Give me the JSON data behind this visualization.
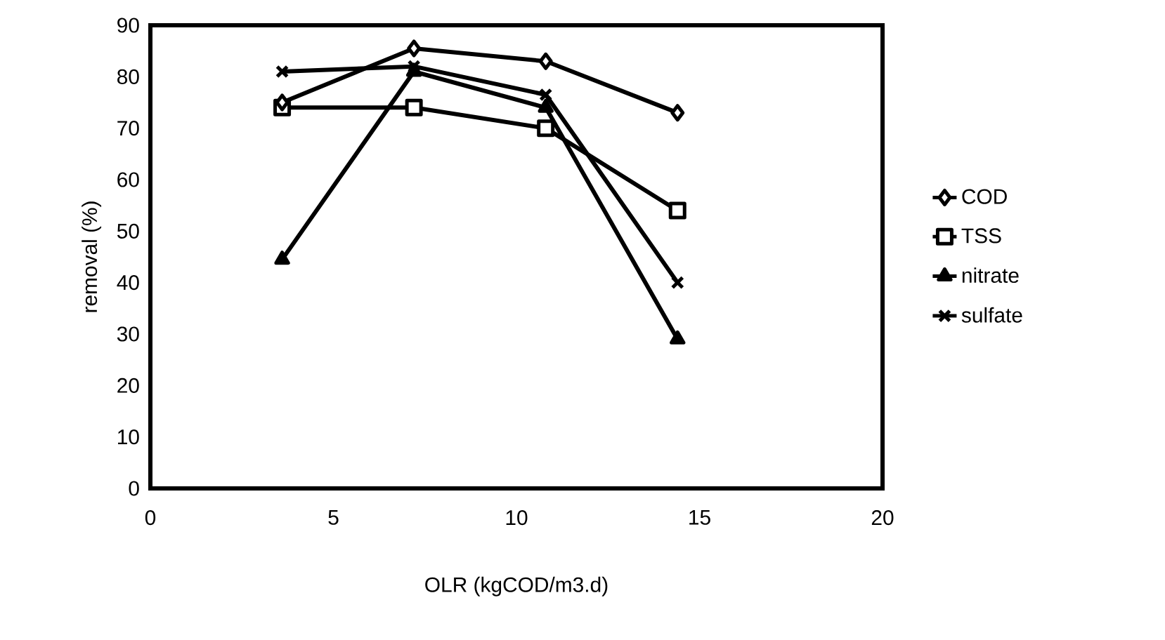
{
  "chart_data": {
    "type": "line",
    "xlabel": "OLR (kgCOD/m3.d)",
    "ylabel": "removal (%)",
    "x": [
      3.6,
      7.2,
      10.8,
      14.4
    ],
    "series": [
      {
        "name": "COD",
        "color": "#000000",
        "marker": "diamond",
        "values": [
          75,
          85.5,
          83,
          73
        ]
      },
      {
        "name": "TSS",
        "color": "#000000",
        "marker": "square",
        "values": [
          74,
          74,
          70,
          54
        ]
      },
      {
        "name": "nitrate",
        "color": "#000000",
        "marker": "triangle",
        "values": [
          44.5,
          81,
          74,
          29
        ]
      },
      {
        "name": "sulfate",
        "color": "#000000",
        "marker": "cross",
        "values": [
          81,
          82,
          76.5,
          40
        ]
      }
    ],
    "xlim": [
      0,
      20
    ],
    "xticks": [
      0,
      5,
      10,
      15,
      20
    ],
    "ylim": [
      0,
      90
    ],
    "yticks": [
      0,
      10,
      20,
      30,
      40,
      50,
      60,
      70,
      80,
      90
    ],
    "grid": false,
    "legend": "right",
    "line_style": "solid"
  }
}
